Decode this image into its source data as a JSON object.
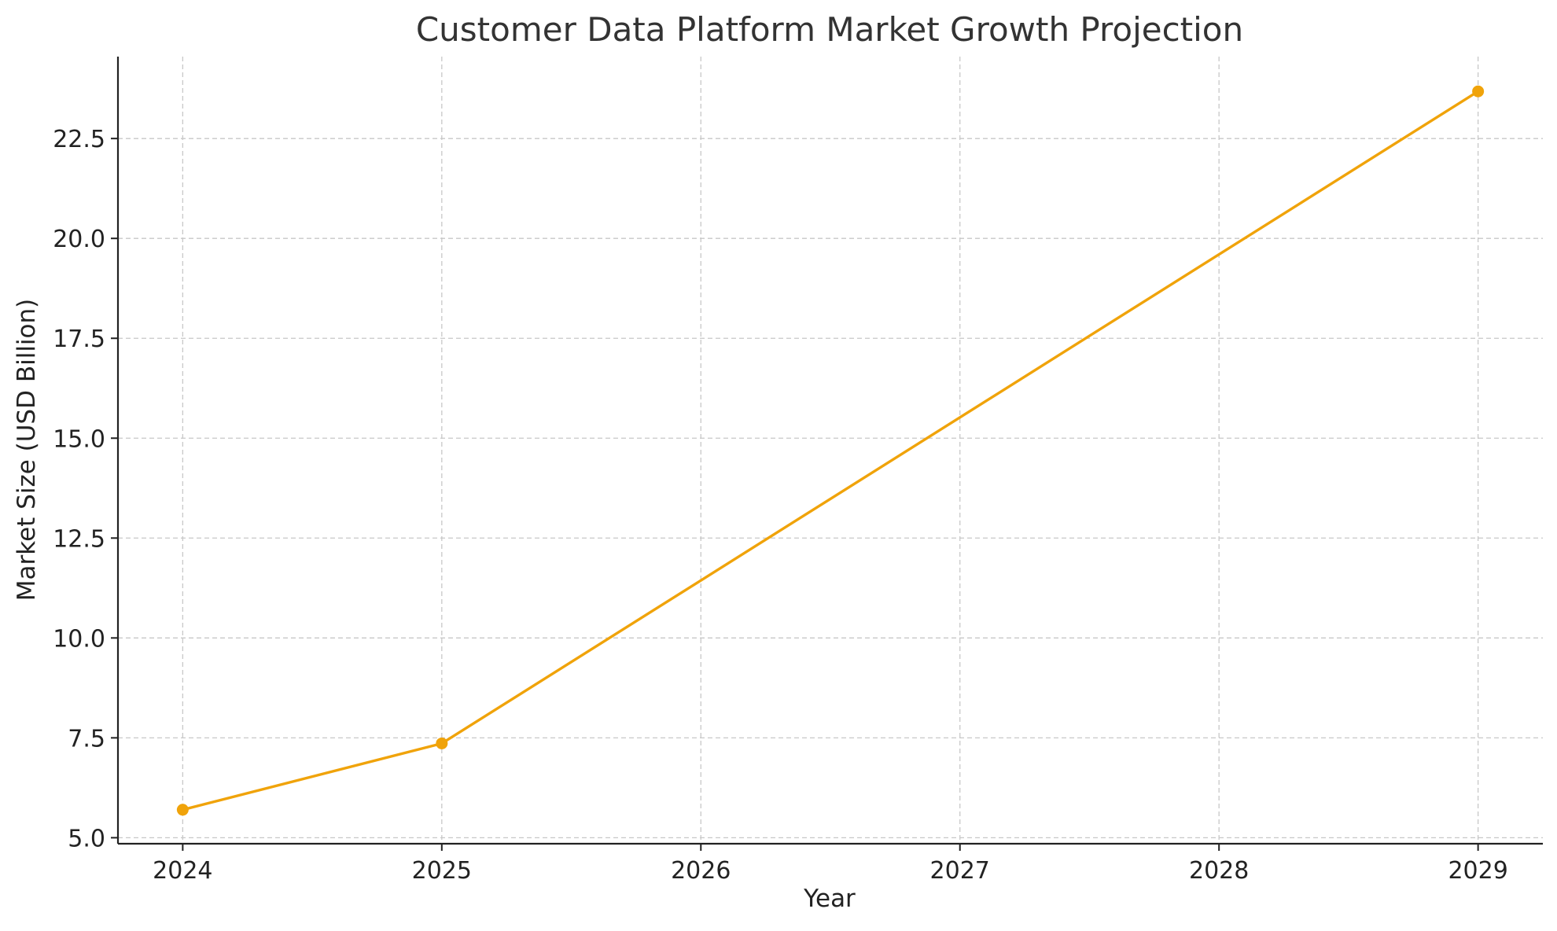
{
  "chart_data": {
    "type": "line",
    "title": "Customer Data Platform Market Growth Projection",
    "xlabel": "Year",
    "ylabel": "Market Size (USD Billion)",
    "x_ticks": [
      2024,
      2025,
      2026,
      2027,
      2028,
      2029
    ],
    "x_tick_labels": [
      "2024",
      "2025",
      "2026",
      "2027",
      "2028",
      "2029"
    ],
    "y_ticks": [
      5.0,
      7.5,
      10.0,
      12.5,
      15.0,
      17.5,
      20.0,
      22.5
    ],
    "y_tick_labels": [
      "5.0",
      "7.5",
      "10.0",
      "12.5",
      "15.0",
      "17.5",
      "20.0",
      "22.5"
    ],
    "xlim": [
      2023.75,
      2029.25
    ],
    "ylim": [
      4.85,
      24.55
    ],
    "grid": true,
    "series": [
      {
        "color": "#f0a30a",
        "marker": "circle",
        "x": [
          2024,
          2025,
          2029
        ],
        "y": [
          5.7,
          7.36,
          23.68
        ]
      }
    ]
  }
}
